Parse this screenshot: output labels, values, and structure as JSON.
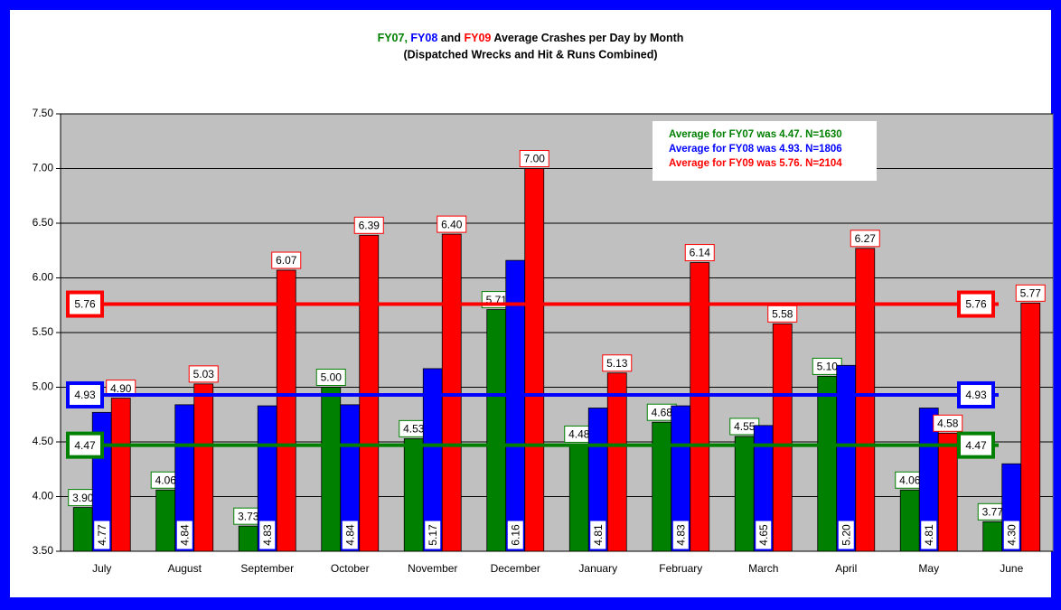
{
  "chart_data": {
    "type": "bar",
    "title": [
      "FY07,",
      "FY08",
      "and",
      "FY09",
      "Average Crashes per Day by Month"
    ],
    "title_colors": [
      "#008000",
      "#0000ff",
      "#000000",
      "#ff0000",
      "#000000"
    ],
    "subtitle": "(Dispatched Wrecks and Hit & Runs Combined)",
    "categories": [
      "July",
      "August",
      "September",
      "October",
      "November",
      "December",
      "January",
      "February",
      "March",
      "April",
      "May",
      "June"
    ],
    "series": [
      {
        "name": "FY07",
        "color": "#008000",
        "average": 4.47,
        "note": "Average for FY07 was 4.47. N=1630",
        "values": [
          3.9,
          4.06,
          3.73,
          5.0,
          4.53,
          5.71,
          4.48,
          4.68,
          4.55,
          5.1,
          4.06,
          3.77
        ],
        "value_labels": [
          "3.90",
          "4.06",
          "3.73",
          "5.00",
          "4.53",
          "5.71",
          "4.48",
          "4.68",
          "4.55",
          "5.10",
          "4.06",
          "3.77"
        ]
      },
      {
        "name": "FY08",
        "color": "#0000ff",
        "average": 4.93,
        "note": "Average for FY08 was 4.93. N=1806",
        "values": [
          4.77,
          4.84,
          4.83,
          4.84,
          5.17,
          6.16,
          4.81,
          4.83,
          4.65,
          5.2,
          4.81,
          4.3
        ],
        "value_labels": [
          "4.77",
          "4.84",
          "4.83",
          "4.84",
          "5.17",
          "6.16",
          "4.81",
          "4.83",
          "4.65",
          "5.20",
          "4.81",
          "4.30"
        ]
      },
      {
        "name": "FY09",
        "color": "#ff0000",
        "average": 5.76,
        "note": "Average for FY09 was 5.76. N=2104",
        "values": [
          4.9,
          5.03,
          6.07,
          6.39,
          6.4,
          7.0,
          5.13,
          6.14,
          5.58,
          6.27,
          4.58,
          5.77
        ],
        "value_labels": [
          "4.90",
          "5.03",
          "6.07",
          "6.39",
          "6.40",
          "7.00",
          "5.13",
          "6.14",
          "5.58",
          "6.27",
          "4.58",
          "5.77"
        ]
      }
    ],
    "ylim": [
      3.5,
      7.5
    ],
    "yticks": [
      {
        "value": 3.5,
        "label": "3.50"
      },
      {
        "value": 4.0,
        "label": "4.00"
      },
      {
        "value": 4.5,
        "label": "4.50"
      },
      {
        "value": 5.0,
        "label": "5.00"
      },
      {
        "value": 5.5,
        "label": "5.50"
      },
      {
        "value": 6.0,
        "label": "6.00"
      },
      {
        "value": 6.5,
        "label": "6.50"
      },
      {
        "value": 7.0,
        "label": "7.00"
      },
      {
        "value": 7.5,
        "label": "7.50"
      }
    ],
    "grid": true,
    "plot_background": "#c0c0c0"
  }
}
